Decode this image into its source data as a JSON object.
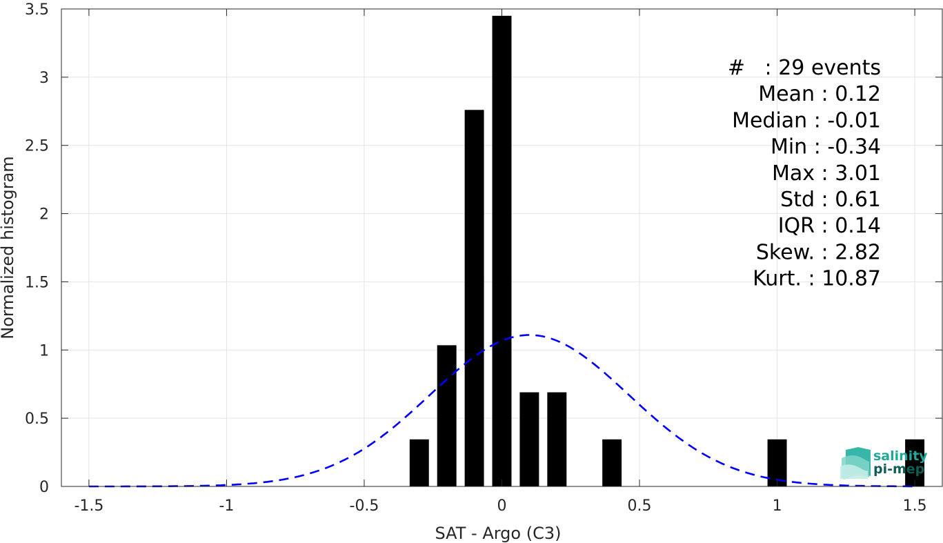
{
  "chart_data": {
    "type": "bar",
    "title": "",
    "xlabel": "SAT - Argo (C3)",
    "ylabel": "Normalized histogram",
    "xlim": [
      -1.6,
      1.6
    ],
    "ylim": [
      0,
      3.5
    ],
    "xticks": [
      -1.5,
      -1,
      -0.5,
      0,
      0.5,
      1,
      1.5
    ],
    "xtick_labels": [
      "-1.5",
      "-1",
      "-0.5",
      "0",
      "0.5",
      "1",
      "1.5"
    ],
    "yticks": [
      0,
      0.5,
      1,
      1.5,
      2,
      2.5,
      3,
      3.5
    ],
    "ytick_labels": [
      "0",
      "0.5",
      "1",
      "1.5",
      "2",
      "2.5",
      "3",
      "3.5"
    ],
    "grid": true,
    "bar_color": "#000000",
    "bar_width": 0.07,
    "bars": {
      "x": [
        -0.3,
        -0.2,
        -0.1,
        0.0,
        0.1,
        0.2,
        0.4,
        1.0,
        1.5
      ],
      "values": [
        0.345,
        1.035,
        2.76,
        3.45,
        0.69,
        0.69,
        0.345,
        0.345,
        0.345
      ]
    },
    "fit_curve": {
      "style": "dashed",
      "color": "#0000ff",
      "mean": 0.1,
      "std": 0.36,
      "peak": 1.11,
      "x_range": [
        -1.5,
        1.5
      ]
    },
    "stats_text": [
      "#   : 29 events",
      "Mean : 0.12",
      "Median : -0.01",
      "Min : -0.34",
      "Max : 3.01",
      "Std : 0.61",
      "IQR : 0.14",
      "Skew. : 2.82",
      "Kurt. : 10.87"
    ]
  },
  "logo": {
    "line1": "salinity",
    "line2": "pi-mep",
    "color": "#1fa99a",
    "dark_color": "#0f5f56",
    "icon": "salinity-waves-logo-icon"
  }
}
